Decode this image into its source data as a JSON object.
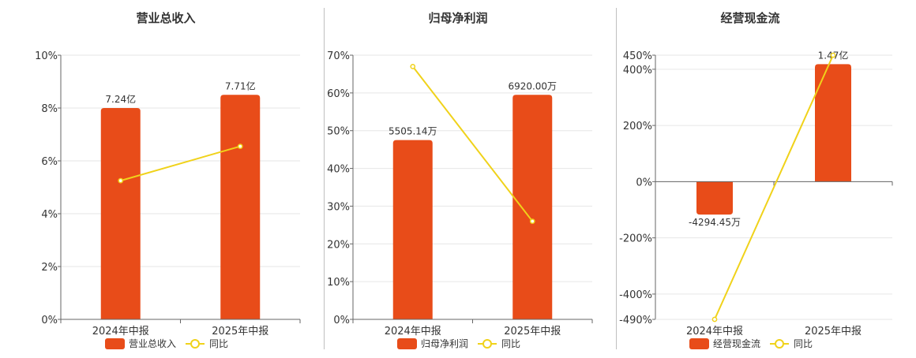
{
  "colors": {
    "bar": "#e84c19",
    "line": "#f0d21a",
    "grid": "#e6e6e6",
    "axis": "#666666"
  },
  "chart_data": [
    {
      "type": "bar",
      "title": "营业总收入",
      "categories": [
        "2024年中报",
        "2025年中报"
      ],
      "series": [
        {
          "name": "营业总收入",
          "type": "bar",
          "values": [
            8.0,
            8.5
          ],
          "labels": [
            "7.24亿",
            "7.71亿"
          ]
        },
        {
          "name": "同比",
          "type": "line",
          "values": [
            5.25,
            6.55
          ]
        }
      ],
      "yticks": [
        "0%",
        "2%",
        "4%",
        "6%",
        "8%",
        "10%"
      ],
      "ylim": [
        0,
        10
      ],
      "zero_line": false,
      "grid": true,
      "legend": "bottom"
    },
    {
      "type": "bar",
      "title": "归母净利润",
      "categories": [
        "2024年中报",
        "2025年中报"
      ],
      "series": [
        {
          "name": "归母净利润",
          "type": "bar",
          "values": [
            47.5,
            59.5
          ],
          "labels": [
            "5505.14万",
            "6920.00万"
          ]
        },
        {
          "name": "同比",
          "type": "line",
          "values": [
            67.0,
            26.0
          ]
        }
      ],
      "yticks": [
        "0%",
        "10%",
        "20%",
        "30%",
        "40%",
        "50%",
        "60%",
        "70%"
      ],
      "ylim": [
        0,
        70
      ],
      "zero_line": false,
      "grid": true,
      "legend": "bottom"
    },
    {
      "type": "bar",
      "title": "经营现金流",
      "categories": [
        "2024年中报",
        "2025年中报"
      ],
      "series": [
        {
          "name": "经营现金流",
          "type": "bar",
          "values": [
            -117,
            418
          ],
          "labels": [
            "-4294.45万",
            "1.47亿"
          ]
        },
        {
          "name": "同比",
          "type": "line",
          "values": [
            -490,
            450
          ]
        }
      ],
      "yticks": [
        "-490%",
        "-400%",
        "-200%",
        "0%",
        "200%",
        "400%",
        "450%"
      ],
      "ylim": [
        -490,
        450
      ],
      "zero_line": true,
      "grid": true,
      "legend": "bottom"
    }
  ]
}
